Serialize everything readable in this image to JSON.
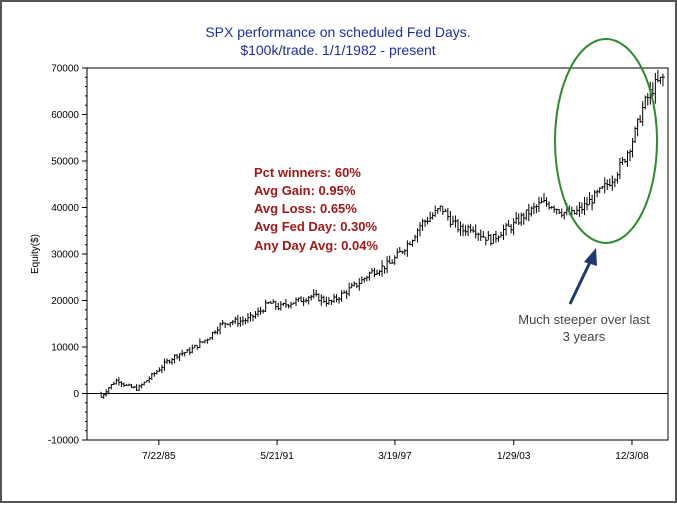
{
  "chart_data": {
    "type": "line",
    "style": "ohlc-bars",
    "title_lines": [
      "SPX performance on scheduled Fed Days.",
      "$100k/trade.  1/1/1982 - present"
    ],
    "ylabel": "Equity($)",
    "xlabel": "",
    "ylim": [
      -10000,
      70000
    ],
    "xlim": [
      1982.0,
      2010.7
    ],
    "yticks": [
      70000,
      60000,
      50000,
      40000,
      30000,
      20000,
      10000,
      0,
      -10000
    ],
    "ytick_labels": [
      "70000",
      "60000",
      "50000",
      "40000",
      "30000",
      "20000",
      "10000",
      "0",
      "-10000"
    ],
    "xticks": [
      1985.55,
      1991.39,
      1997.21,
      2003.08,
      2008.92
    ],
    "xtick_labels": [
      "7/22/85",
      "5/21/91",
      "3/19/97",
      "1/29/03",
      "12/3/08"
    ],
    "grid": false,
    "zero_line": true,
    "series": [
      {
        "name": "",
        "color": "#000000",
        "x": [
          1982.0,
          1982.5,
          1983.0,
          1983.5,
          1984.0,
          1984.5,
          1985.0,
          1985.5,
          1986.0,
          1986.5,
          1987.0,
          1987.5,
          1988.0,
          1988.5,
          1989.0,
          1989.5,
          1990.0,
          1990.5,
          1991.0,
          1991.5,
          1992.0,
          1992.5,
          1993.0,
          1993.5,
          1994.0,
          1994.5,
          1995.0,
          1995.5,
          1996.0,
          1996.5,
          1997.0,
          1997.5,
          1998.0,
          1998.5,
          1999.0,
          1999.5,
          2000.0,
          2000.5,
          2001.0,
          2001.5,
          2002.0,
          2002.5,
          2003.0,
          2003.5,
          2004.0,
          2004.5,
          2005.0,
          2005.5,
          2006.0,
          2006.5,
          2007.0,
          2007.5,
          2008.0,
          2008.5,
          2009.0,
          2009.5,
          2010.0,
          2010.5
        ],
        "y": [
          0,
          -2000,
          1000,
          3000,
          1500,
          1000,
          3000,
          5000,
          7000,
          8500,
          9000,
          10500,
          12000,
          14500,
          15500,
          15500,
          16000,
          17500,
          19500,
          18500,
          19500,
          20000,
          21000,
          20500,
          19500,
          21000,
          22500,
          24000,
          26000,
          27000,
          28000,
          30500,
          33000,
          36500,
          38000,
          40000,
          37000,
          35000,
          36000,
          34000,
          33000,
          35000,
          36000,
          38000,
          39500,
          41000,
          40500,
          39000,
          38500,
          40000,
          42000,
          44000,
          46500,
          50000,
          55000,
          62000,
          66000,
          68000
        ]
      }
    ],
    "stats": [
      "Pct winners: 60%",
      "Avg Gain: 0.95%",
      "Avg Loss: 0.65%",
      "Avg Fed Day: 0.30%",
      "Any Day Avg: 0.04%"
    ],
    "annotation": {
      "lines": [
        "Much steeper over last",
        "3 years"
      ],
      "highlight_color": "#2e8b2e",
      "arrow_color": "#1f3a6e"
    }
  }
}
